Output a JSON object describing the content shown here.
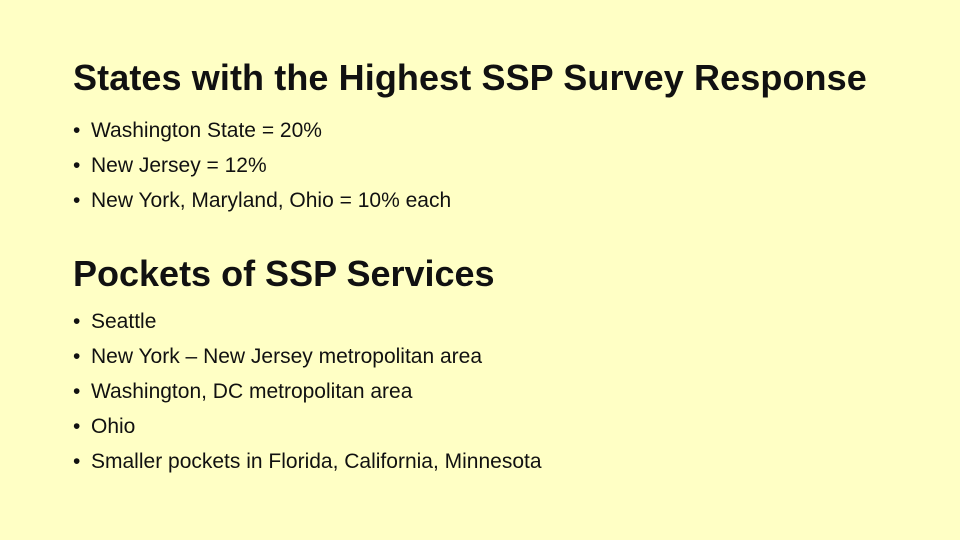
{
  "slide": {
    "background_color": "#ffffc5",
    "text_color": "#111111",
    "bullet_glyph": "•",
    "sections": [
      {
        "title": "States with the Highest SSP Survey Response",
        "items": [
          "Washington State = 20%",
          "New Jersey = 12%",
          "New York, Maryland, Ohio = 10% each"
        ]
      },
      {
        "title": "Pockets of SSP Services",
        "items": [
          "Seattle",
          "New York – New Jersey metropolitan area",
          "Washington, DC metropolitan area",
          "Ohio",
          "Smaller pockets in Florida, California, Minnesota"
        ]
      }
    ]
  }
}
